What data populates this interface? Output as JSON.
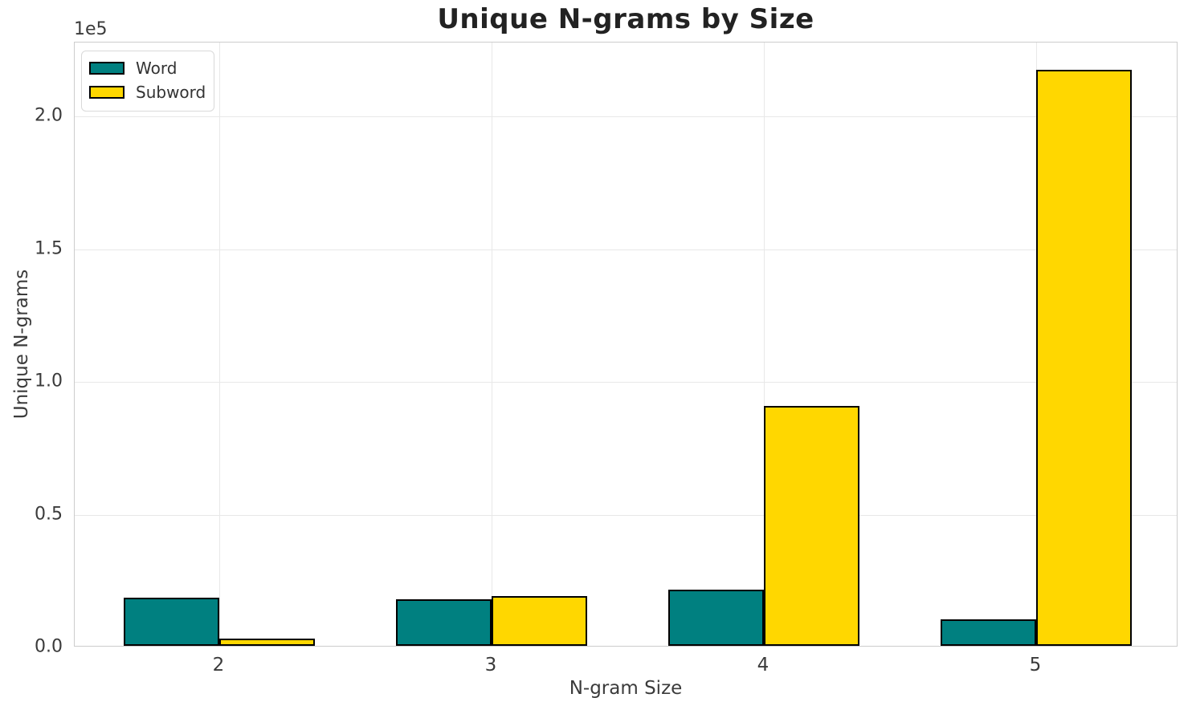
{
  "chart_data": {
    "type": "bar",
    "title": "Unique N-grams by Size",
    "xlabel": "N-gram Size",
    "ylabel": "Unique N-grams",
    "y_offset_label": "1e5",
    "categories": [
      "2",
      "3",
      "4",
      "5"
    ],
    "series": [
      {
        "name": "Word",
        "color": "#008080",
        "values": [
          18200,
          17500,
          21200,
          10000
        ]
      },
      {
        "name": "Subword",
        "color": "#FFD700",
        "values": [
          2700,
          18700,
          90300,
          217000
        ]
      }
    ],
    "ylim": [
      0,
      227800
    ],
    "yticks": [
      {
        "value": 0,
        "label": "0.0"
      },
      {
        "value": 50000,
        "label": "0.5"
      },
      {
        "value": 100000,
        "label": "1.0"
      },
      {
        "value": 150000,
        "label": "1.5"
      },
      {
        "value": 200000,
        "label": "2.0"
      }
    ],
    "grid": true,
    "legend_position": "upper left",
    "bar_edge_color": "#000000",
    "colors": {
      "grid": "#e8e8e8",
      "spine": "#cccccc",
      "tick_text": "#3b3b3b",
      "title_text": "#222222",
      "background": "#ffffff"
    }
  }
}
